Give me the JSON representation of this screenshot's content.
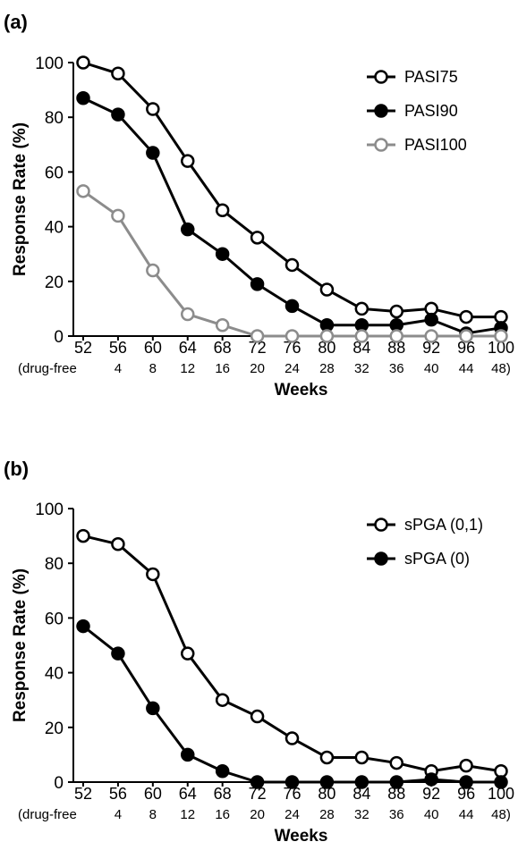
{
  "chart_data": [
    {
      "type": "line",
      "panel_label": "(a)",
      "xlabel": "Weeks",
      "ylabel": "Response Rate (%)",
      "ylim": [
        0,
        100
      ],
      "yticks": [
        "0",
        "20",
        "40",
        "60",
        "80",
        "100"
      ],
      "x": [
        52,
        56,
        60,
        64,
        68,
        72,
        76,
        80,
        84,
        88,
        92,
        96,
        100
      ],
      "x_tick_labels": [
        "52",
        "56",
        "60",
        "64",
        "68",
        "72",
        "76",
        "80",
        "84",
        "88",
        "92",
        "96",
        "100"
      ],
      "x_tick_labels_2": [
        "(drug-free",
        "4",
        "8",
        "12",
        "16",
        "20",
        "24",
        "28",
        "32",
        "36",
        "40",
        "44",
        "48)"
      ],
      "grid": false,
      "legend_position": "top-right",
      "series": [
        {
          "name": "PASI75",
          "color": "#000000",
          "marker": "open-circle",
          "values": [
            100,
            96,
            83,
            64,
            46,
            36,
            26,
            17,
            10,
            9,
            10,
            7,
            7
          ]
        },
        {
          "name": "PASI90",
          "color": "#000000",
          "marker": "filled-circle",
          "values": [
            87,
            81,
            67,
            39,
            30,
            19,
            11,
            4,
            4,
            4,
            6,
            1,
            3
          ]
        },
        {
          "name": "PASI100",
          "color": "#8c8c8c",
          "marker": "open-circle",
          "values": [
            53,
            44,
            24,
            8,
            4,
            0,
            0,
            0,
            0,
            0,
            0,
            0,
            0
          ]
        }
      ]
    },
    {
      "type": "line",
      "panel_label": "(b)",
      "xlabel": "Weeks",
      "ylabel": "Response Rate (%)",
      "ylim": [
        0,
        100
      ],
      "yticks": [
        "0",
        "20",
        "40",
        "60",
        "80",
        "100"
      ],
      "x": [
        52,
        56,
        60,
        64,
        68,
        72,
        76,
        80,
        84,
        88,
        92,
        96,
        100
      ],
      "x_tick_labels": [
        "52",
        "56",
        "60",
        "64",
        "68",
        "72",
        "76",
        "80",
        "84",
        "88",
        "92",
        "96",
        "100"
      ],
      "x_tick_labels_2": [
        "(drug-free",
        "4",
        "8",
        "12",
        "16",
        "20",
        "24",
        "28",
        "32",
        "36",
        "40",
        "44",
        "48)"
      ],
      "grid": false,
      "legend_position": "top-right",
      "series": [
        {
          "name": "sPGA (0,1)",
          "color": "#000000",
          "marker": "open-circle",
          "values": [
            90,
            87,
            76,
            47,
            30,
            24,
            16,
            9,
            9,
            7,
            4,
            6,
            4
          ]
        },
        {
          "name": "sPGA (0)",
          "color": "#000000",
          "marker": "filled-circle",
          "values": [
            57,
            47,
            27,
            10,
            4,
            0,
            0,
            0,
            0,
            0,
            1,
            0,
            0
          ]
        }
      ]
    }
  ]
}
